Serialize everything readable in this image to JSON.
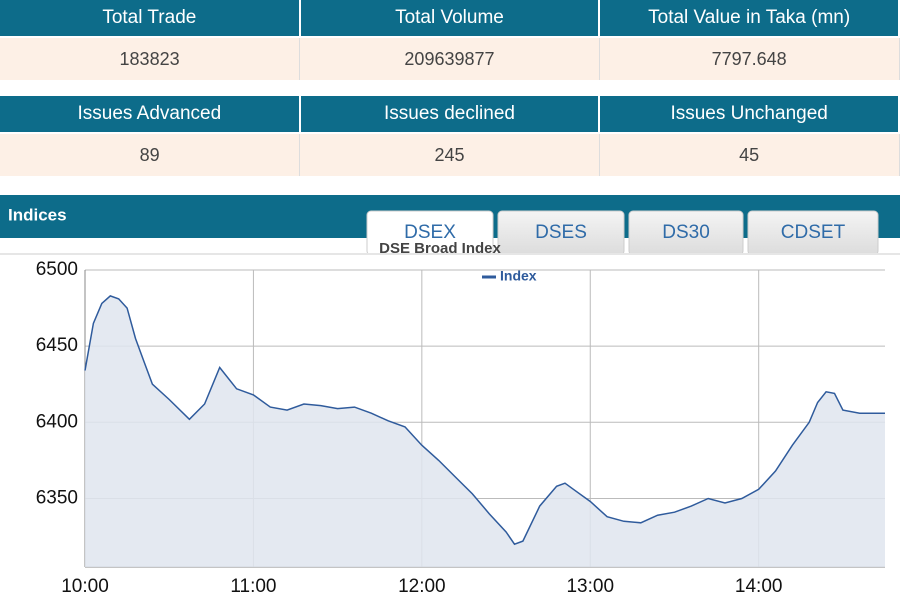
{
  "summary_table": {
    "headers": [
      "Total Trade",
      "Total Volume",
      "Total Value in Taka (mn)"
    ],
    "values": [
      "183823",
      "209639877",
      "7797.648"
    ]
  },
  "issues_table": {
    "headers": [
      "Issues Advanced",
      "Issues declined",
      "Issues Unchanged"
    ],
    "values": [
      "89",
      "245",
      "45"
    ]
  },
  "section_title": "Indices",
  "tabs": [
    "DSEX",
    "DSES",
    "DS30",
    "CDSET"
  ],
  "chart_data": {
    "type": "line",
    "title": "DSE Broad Index",
    "x": [
      10.0,
      10.05,
      10.1,
      10.15,
      10.2,
      10.25,
      10.3,
      10.35,
      10.4,
      10.5,
      10.62,
      10.71,
      10.8,
      10.9,
      11.0,
      11.1,
      11.2,
      11.3,
      11.4,
      11.5,
      11.6,
      11.7,
      11.8,
      11.9,
      12.0,
      12.1,
      12.2,
      12.3,
      12.4,
      12.5,
      12.55,
      12.6,
      12.7,
      12.8,
      12.85,
      12.9,
      13.0,
      13.1,
      13.2,
      13.3,
      13.4,
      13.5,
      13.6,
      13.7,
      13.8,
      13.9,
      14.0,
      14.1,
      14.2,
      14.3,
      14.35,
      14.4,
      14.45,
      14.5,
      14.6,
      14.75
    ],
    "series": [
      {
        "name": "Index",
        "color": "#2f5b9c",
        "values": [
          6434,
          6465,
          6478,
          6483,
          6481,
          6475,
          6455,
          6440,
          6425,
          6415,
          6402,
          6412,
          6436,
          6422,
          6418,
          6410,
          6408,
          6412,
          6411,
          6409,
          6410,
          6406,
          6401,
          6397,
          6385,
          6375,
          6364,
          6353,
          6340,
          6328,
          6320,
          6322,
          6345,
          6358,
          6360,
          6356,
          6348,
          6338,
          6335,
          6334,
          6339,
          6341,
          6345,
          6350,
          6347,
          6350,
          6356,
          6368,
          6385,
          6400,
          6413,
          6420,
          6419,
          6408,
          6406,
          6406
        ]
      }
    ],
    "xlim": [
      10,
      14.75
    ],
    "xticks": [
      {
        "value": 10,
        "label": "10:00"
      },
      {
        "value": 11,
        "label": "11:00"
      },
      {
        "value": 12,
        "label": "12:00"
      },
      {
        "value": 13,
        "label": "13:00"
      },
      {
        "value": 14,
        "label": "14:00"
      }
    ],
    "ylim": [
      6305,
      6500
    ],
    "yticks": [
      6350,
      6400,
      6450,
      6500
    ],
    "grid": true,
    "legend": "top"
  }
}
